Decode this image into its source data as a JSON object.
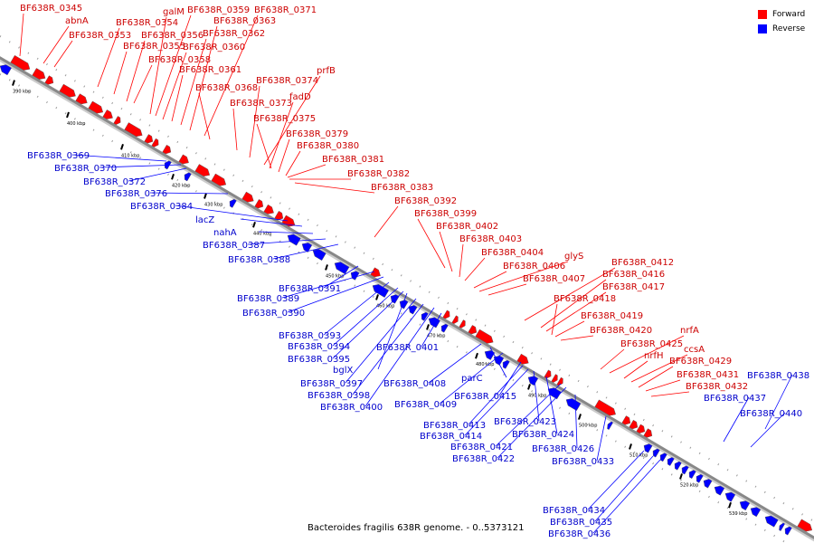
{
  "caption": "Bacteroides fragilis 638R genome. - 0..5373121",
  "colors": {
    "forward": "#ff0000",
    "reverse": "#0000ff",
    "backbone": "#888888"
  },
  "legend": [
    {
      "label": "Forward",
      "color": "#ff0000"
    },
    {
      "label": "Reverse",
      "color": "#0000ff"
    }
  ],
  "scale_labels": [
    "390 kbp",
    "400 kbp",
    "410 kbp",
    "420 kbp",
    "430 kbp",
    "440 kbp",
    "450 kbp",
    "460 kbp",
    "470 kbp",
    "480 kbp",
    "490 kbp",
    "500 kbp",
    "510 kbp",
    "520 kbp",
    "530 kbp"
  ],
  "forward_labels": [
    "BF638R_0345",
    "abnA",
    "BF638R_0353",
    "BF638R_0354",
    "BF638R_0355",
    "BF638R_0356",
    "BF638R_0358",
    "galM",
    "BF638R_0359",
    "BF638R_0360",
    "BF638R_0361",
    "BF638R_0362",
    "BF638R_0363",
    "BF638R_0371",
    "BF638R_0368",
    "BF638R_0373",
    "BF638R_0374",
    "prfB",
    "fadD",
    "BF638R_0375",
    "BF638R_0379",
    "BF638R_0380",
    "BF638R_0381",
    "BF638R_0382",
    "BF638R_0383",
    "BF638R_0392",
    "BF638R_0399",
    "BF638R_0402",
    "BF638R_0403",
    "BF638R_0404",
    "BF638R_0406",
    "glyS",
    "BF638R_0407",
    "BF638R_0412",
    "BF638R_0416",
    "BF638R_0417",
    "BF638R_0418",
    "BF638R_0419",
    "BF638R_0420",
    "BF638R_0425",
    "nrfA",
    "nrfH",
    "ccsA",
    "BF638R_0429",
    "BF638R_0431",
    "BF638R_0432"
  ],
  "reverse_labels": [
    "BF638R_0369",
    "BF638R_0370",
    "BF638R_0372",
    "BF638R_0376",
    "BF638R_0384",
    "lacZ",
    "nahA",
    "BF638R_0387",
    "BF638R_0388",
    "BF638R_0391",
    "BF638R_0389",
    "BF638R_0390",
    "BF638R_0393",
    "BF638R_0394",
    "BF638R_0395",
    "bglX",
    "BF638R_0397",
    "BF638R_0398",
    "BF638R_0400",
    "BF638R_0401",
    "BF638R_0408",
    "parC",
    "BF638R_0409",
    "BF638R_0415",
    "BF638R_0413",
    "BF638R_0414",
    "BF638R_0423",
    "BF638R_0424",
    "BF638R_0421",
    "BF638R_0422",
    "BF638R_0426",
    "BF638R_0433",
    "BF638R_0438",
    "BF638R_0437",
    "BF638R_0440",
    "BF638R_0434",
    "BF638R_0435",
    "BF638R_0436"
  ]
}
